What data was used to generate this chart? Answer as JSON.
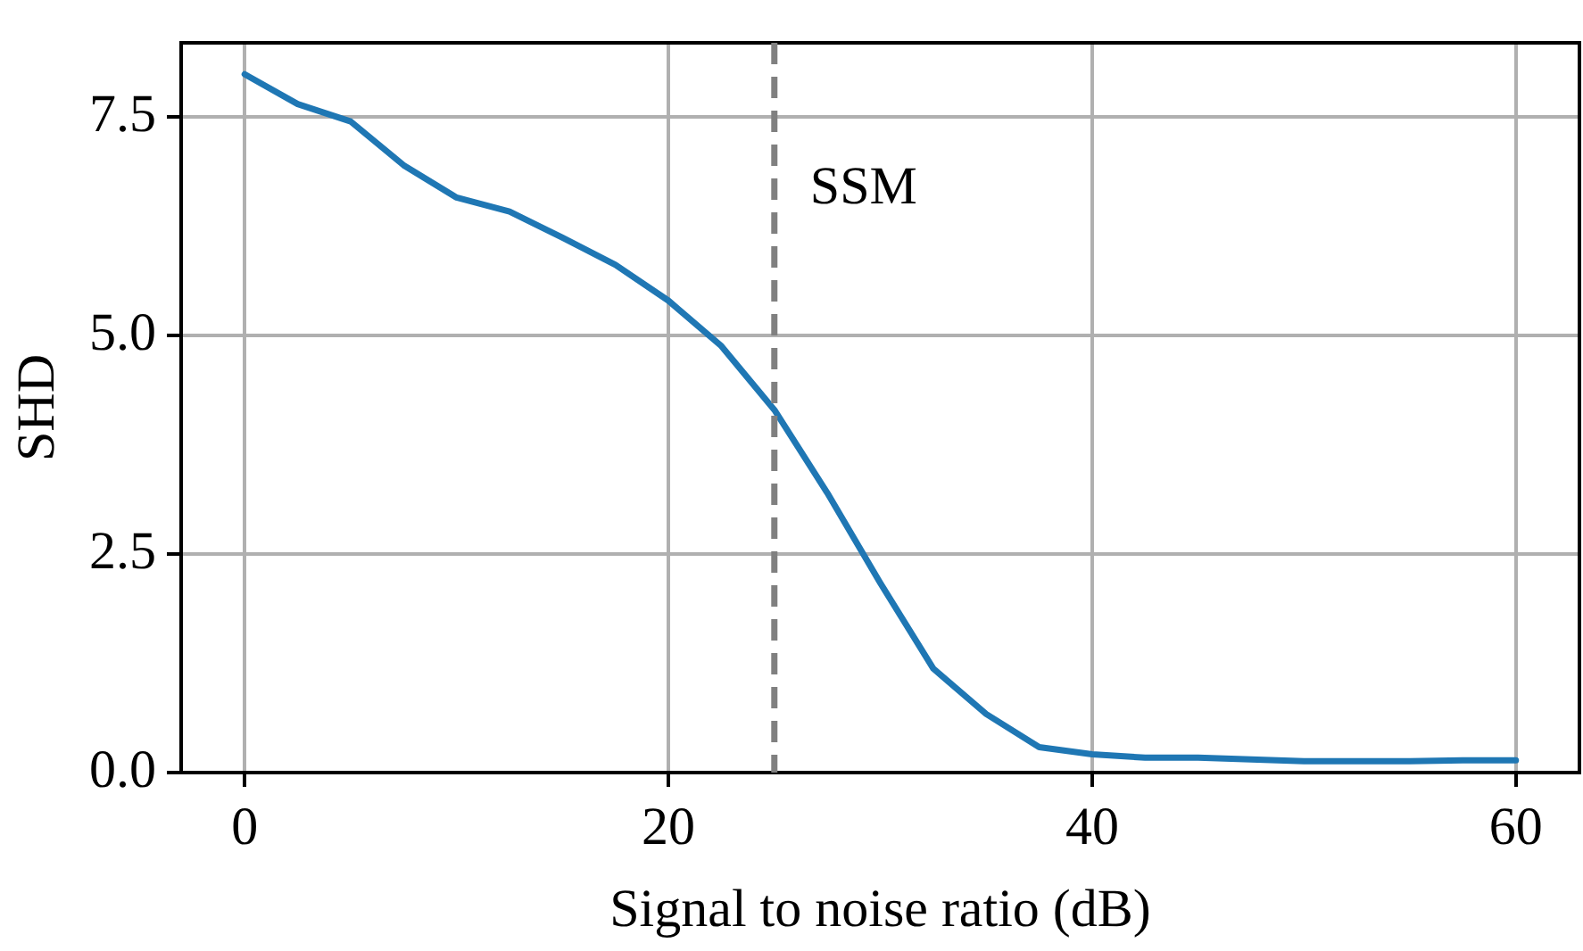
{
  "chart_data": {
    "type": "line",
    "xlabel": "Signal to noise ratio (dB)",
    "ylabel": "SHD",
    "x": [
      0,
      2.5,
      5,
      7.5,
      10,
      12.5,
      15,
      17.5,
      20,
      22.5,
      25,
      27.5,
      30,
      32.5,
      35,
      37.5,
      40,
      42.5,
      45,
      47.5,
      50,
      52.5,
      55,
      57.5,
      60
    ],
    "series": [
      {
        "color": "#1f77b4",
        "values": [
          7.99,
          7.65,
          7.45,
          6.95,
          6.58,
          6.42,
          6.12,
          5.81,
          5.4,
          4.88,
          4.15,
          3.2,
          2.17,
          1.19,
          0.67,
          0.29,
          0.21,
          0.17,
          0.17,
          0.15,
          0.13,
          0.13,
          0.13,
          0.14,
          0.14
        ]
      }
    ],
    "xlim": [
      -3,
      63
    ],
    "ylim": [
      0,
      8.35
    ],
    "xticks": [
      0,
      20,
      40,
      60
    ],
    "yticks": [
      {
        "value": 0,
        "label": "0.0"
      },
      {
        "value": 2.5,
        "label": "2.5"
      },
      {
        "value": 5,
        "label": "5.0"
      },
      {
        "value": 7.5,
        "label": "7.5"
      }
    ],
    "ref_lines": [
      {
        "axis": "x",
        "value": 25,
        "label": "SSM",
        "color": "#808080",
        "line_style": "dashed"
      }
    ],
    "grid": true,
    "marker": "none",
    "line_style": "solid"
  }
}
